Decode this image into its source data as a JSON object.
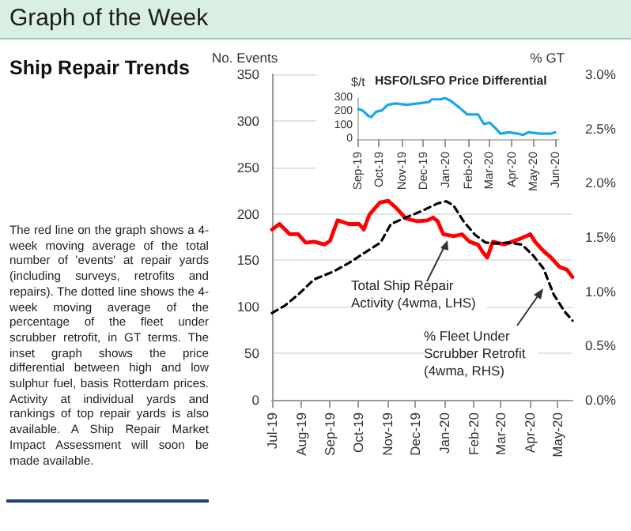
{
  "chart_data": [
    {
      "type": "line",
      "ylabel": "No. Events",
      "y2label": "% GT",
      "marker": "none",
      "grid": "y",
      "xlim": [
        "2019-07-01",
        "2020-05-17"
      ],
      "xticks": [
        {
          "value": "2019-07-01",
          "label": "Jul-19"
        },
        {
          "value": "2019-08-01",
          "label": "Aug-19"
        },
        {
          "value": "2019-09-01",
          "label": "Sep-19"
        },
        {
          "value": "2019-10-01",
          "label": "Oct-19"
        },
        {
          "value": "2019-11-01",
          "label": "Nov-19"
        },
        {
          "value": "2019-12-01",
          "label": "Dec-19"
        },
        {
          "value": "2020-01-01",
          "label": "Jan-20"
        },
        {
          "value": "2020-02-01",
          "label": "Feb-20"
        },
        {
          "value": "2020-03-01",
          "label": "Mar-20"
        },
        {
          "value": "2020-04-01",
          "label": "Apr-20"
        },
        {
          "value": "2020-05-01",
          "label": "May-20"
        }
      ],
      "ylim": [
        0,
        350
      ],
      "yticks": [
        0,
        50,
        100,
        150,
        200,
        250,
        300,
        350
      ],
      "y2lim": [
        0,
        3
      ],
      "y2ticks": [
        {
          "value": 0,
          "label": "0.0%"
        },
        {
          "value": 0.5,
          "label": "0.5%"
        },
        {
          "value": 1,
          "label": "1.0%"
        },
        {
          "value": 1.5,
          "label": "1.5%"
        },
        {
          "value": 2,
          "label": "2.0%"
        },
        {
          "value": 2.5,
          "label": "2.5%"
        },
        {
          "value": 3,
          "label": "3.0%"
        }
      ],
      "series": [
        {
          "name": "Total Ship Repair Activity (4wma, LHS)",
          "color": "#ff0000",
          "line_style": "solid",
          "x": [
            "2019-07-01",
            "2019-07-09",
            "2019-07-20",
            "2019-07-29",
            "2019-08-06",
            "2019-08-15",
            "2019-08-26",
            "2019-09-01",
            "2019-09-09",
            "2019-09-21",
            "2019-10-02",
            "2019-10-07",
            "2019-10-13",
            "2019-10-24",
            "2019-11-02",
            "2019-11-10",
            "2019-11-21",
            "2019-12-03",
            "2019-12-14",
            "2019-12-20",
            "2019-12-25",
            "2019-12-31",
            "2020-01-11",
            "2020-01-20",
            "2020-01-28",
            "2020-02-06",
            "2020-02-11",
            "2020-02-16",
            "2020-02-22",
            "2020-03-05",
            "2020-03-13",
            "2020-03-24",
            "2020-04-02",
            "2020-04-07",
            "2020-04-16",
            "2020-04-24",
            "2020-05-03",
            "2020-05-11",
            "2020-05-17"
          ],
          "values": [
            183,
            189,
            178,
            178,
            169,
            170,
            167,
            171,
            193,
            189,
            189,
            183,
            199,
            212,
            214,
            207,
            195,
            192,
            193,
            196,
            192,
            178,
            176,
            178,
            170,
            167,
            159,
            153,
            170,
            167,
            170,
            174,
            178,
            170,
            160,
            153,
            143,
            140,
            132
          ]
        },
        {
          "name": "% Fleet Under Scrubber Retrofit (4wma, RHS)",
          "color": "#000000",
          "line_style": "dashed",
          "axis": "y2",
          "x": [
            "2019-07-01",
            "2019-07-15",
            "2019-07-29",
            "2019-08-15",
            "2019-09-04",
            "2019-09-21",
            "2019-10-07",
            "2019-10-25",
            "2019-11-05",
            "2019-11-21",
            "2019-12-08",
            "2019-12-25",
            "2020-01-03",
            "2020-01-11",
            "2020-01-22",
            "2020-02-03",
            "2020-02-14",
            "2020-02-25",
            "2020-03-10",
            "2020-03-24",
            "2020-04-05",
            "2020-04-16",
            "2020-04-27",
            "2020-05-08",
            "2020-05-17"
          ],
          "values": [
            0.8,
            0.87,
            0.97,
            1.11,
            1.18,
            1.26,
            1.35,
            1.45,
            1.62,
            1.68,
            1.74,
            1.81,
            1.83,
            1.79,
            1.64,
            1.52,
            1.45,
            1.44,
            1.45,
            1.43,
            1.33,
            1.21,
            0.97,
            0.82,
            0.73
          ]
        }
      ]
    },
    {
      "type": "line",
      "title": "HSFO/LSFO Price Differential",
      "ylabel": "$/t",
      "marker": "none",
      "xlim": [
        "2019-09-01",
        "2020-06-05"
      ],
      "xticks": [
        {
          "value": "2019-09-01",
          "label": "Sep-19"
        },
        {
          "value": "2019-10-01",
          "label": "Oct-19"
        },
        {
          "value": "2019-11-01",
          "label": "Nov-19"
        },
        {
          "value": "2019-12-01",
          "label": "Dec-19"
        },
        {
          "value": "2020-01-01",
          "label": "Jan-20"
        },
        {
          "value": "2020-02-01",
          "label": "Feb-20"
        },
        {
          "value": "2020-03-01",
          "label": "Mar-20"
        },
        {
          "value": "2020-04-01",
          "label": "Apr-20"
        },
        {
          "value": "2020-05-01",
          "label": "May-20"
        },
        {
          "value": "2020-06-01",
          "label": "Jun-20"
        }
      ],
      "ylim": [
        0,
        300
      ],
      "yticks": [
        0,
        100,
        200,
        300
      ],
      "series": [
        {
          "color": "#1aa7ec",
          "x": [
            "2019-09-01",
            "2019-09-08",
            "2019-09-16",
            "2019-09-20",
            "2019-09-27",
            "2019-10-05",
            "2019-10-13",
            "2019-10-24",
            "2019-11-08",
            "2019-11-24",
            "2019-12-09",
            "2019-12-13",
            "2019-12-25",
            "2019-12-31",
            "2020-01-08",
            "2020-01-20",
            "2020-01-31",
            "2020-02-15",
            "2020-02-23",
            "2020-03-02",
            "2020-03-10",
            "2020-03-17",
            "2020-03-29",
            "2020-04-10",
            "2020-04-17",
            "2020-04-25",
            "2020-05-10",
            "2020-05-26",
            "2020-06-02"
          ],
          "values": [
            220,
            210,
            170,
            160,
            200,
            210,
            250,
            260,
            250,
            260,
            270,
            290,
            290,
            300,
            280,
            230,
            180,
            180,
            110,
            120,
            80,
            40,
            50,
            40,
            30,
            50,
            40,
            40,
            50
          ]
        }
      ]
    },
    {
      "type": "other",
      "title": "Graph of the Week",
      "subtitle": "Ship Repair Trends",
      "annotations": [
        "The red line on the graph shows a 4-week moving average of the total number of 'events' at repair yards (including surveys, retrofits and repairs). The dotted line shows the 4-week moving average of the percentage of the fleet under scrubber retrofit, in GT terms. The inset graph shows the price differential between high and low sulphur fuel, basis Rotterdam prices. Activity at individual yards and rankings of top repair yards is also available. A Ship Repair Market Impact Assessment will soon be made available."
      ]
    }
  ]
}
